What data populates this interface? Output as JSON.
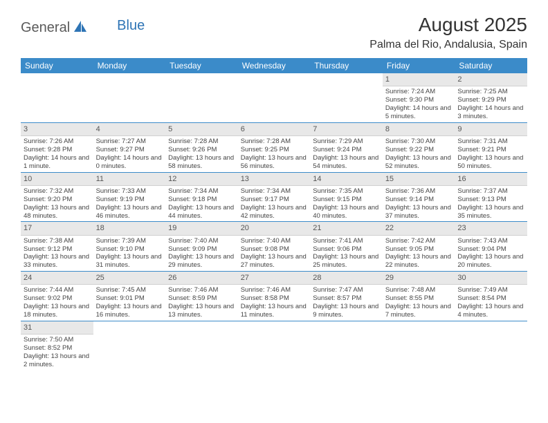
{
  "logo": {
    "text1": "General",
    "text2": "Blue"
  },
  "title": "August 2025",
  "location": "Palma del Rio, Andalusia, Spain",
  "colors": {
    "header_bg": "#3b8bc9",
    "header_text": "#ffffff",
    "daynum_bg": "#e8e8e8",
    "row_border": "#3b8bc9",
    "logo_gray": "#5a5a5a",
    "logo_blue": "#2e74b5"
  },
  "weekdays": [
    "Sunday",
    "Monday",
    "Tuesday",
    "Wednesday",
    "Thursday",
    "Friday",
    "Saturday"
  ],
  "weeks": [
    [
      null,
      null,
      null,
      null,
      null,
      {
        "n": "1",
        "sr": "Sunrise: 7:24 AM",
        "ss": "Sunset: 9:30 PM",
        "dl": "Daylight: 14 hours and 5 minutes."
      },
      {
        "n": "2",
        "sr": "Sunrise: 7:25 AM",
        "ss": "Sunset: 9:29 PM",
        "dl": "Daylight: 14 hours and 3 minutes."
      }
    ],
    [
      {
        "n": "3",
        "sr": "Sunrise: 7:26 AM",
        "ss": "Sunset: 9:28 PM",
        "dl": "Daylight: 14 hours and 1 minute."
      },
      {
        "n": "4",
        "sr": "Sunrise: 7:27 AM",
        "ss": "Sunset: 9:27 PM",
        "dl": "Daylight: 14 hours and 0 minutes."
      },
      {
        "n": "5",
        "sr": "Sunrise: 7:28 AM",
        "ss": "Sunset: 9:26 PM",
        "dl": "Daylight: 13 hours and 58 minutes."
      },
      {
        "n": "6",
        "sr": "Sunrise: 7:28 AM",
        "ss": "Sunset: 9:25 PM",
        "dl": "Daylight: 13 hours and 56 minutes."
      },
      {
        "n": "7",
        "sr": "Sunrise: 7:29 AM",
        "ss": "Sunset: 9:24 PM",
        "dl": "Daylight: 13 hours and 54 minutes."
      },
      {
        "n": "8",
        "sr": "Sunrise: 7:30 AM",
        "ss": "Sunset: 9:22 PM",
        "dl": "Daylight: 13 hours and 52 minutes."
      },
      {
        "n": "9",
        "sr": "Sunrise: 7:31 AM",
        "ss": "Sunset: 9:21 PM",
        "dl": "Daylight: 13 hours and 50 minutes."
      }
    ],
    [
      {
        "n": "10",
        "sr": "Sunrise: 7:32 AM",
        "ss": "Sunset: 9:20 PM",
        "dl": "Daylight: 13 hours and 48 minutes."
      },
      {
        "n": "11",
        "sr": "Sunrise: 7:33 AM",
        "ss": "Sunset: 9:19 PM",
        "dl": "Daylight: 13 hours and 46 minutes."
      },
      {
        "n": "12",
        "sr": "Sunrise: 7:34 AM",
        "ss": "Sunset: 9:18 PM",
        "dl": "Daylight: 13 hours and 44 minutes."
      },
      {
        "n": "13",
        "sr": "Sunrise: 7:34 AM",
        "ss": "Sunset: 9:17 PM",
        "dl": "Daylight: 13 hours and 42 minutes."
      },
      {
        "n": "14",
        "sr": "Sunrise: 7:35 AM",
        "ss": "Sunset: 9:15 PM",
        "dl": "Daylight: 13 hours and 40 minutes."
      },
      {
        "n": "15",
        "sr": "Sunrise: 7:36 AM",
        "ss": "Sunset: 9:14 PM",
        "dl": "Daylight: 13 hours and 37 minutes."
      },
      {
        "n": "16",
        "sr": "Sunrise: 7:37 AM",
        "ss": "Sunset: 9:13 PM",
        "dl": "Daylight: 13 hours and 35 minutes."
      }
    ],
    [
      {
        "n": "17",
        "sr": "Sunrise: 7:38 AM",
        "ss": "Sunset: 9:12 PM",
        "dl": "Daylight: 13 hours and 33 minutes."
      },
      {
        "n": "18",
        "sr": "Sunrise: 7:39 AM",
        "ss": "Sunset: 9:10 PM",
        "dl": "Daylight: 13 hours and 31 minutes."
      },
      {
        "n": "19",
        "sr": "Sunrise: 7:40 AM",
        "ss": "Sunset: 9:09 PM",
        "dl": "Daylight: 13 hours and 29 minutes."
      },
      {
        "n": "20",
        "sr": "Sunrise: 7:40 AM",
        "ss": "Sunset: 9:08 PM",
        "dl": "Daylight: 13 hours and 27 minutes."
      },
      {
        "n": "21",
        "sr": "Sunrise: 7:41 AM",
        "ss": "Sunset: 9:06 PM",
        "dl": "Daylight: 13 hours and 25 minutes."
      },
      {
        "n": "22",
        "sr": "Sunrise: 7:42 AM",
        "ss": "Sunset: 9:05 PM",
        "dl": "Daylight: 13 hours and 22 minutes."
      },
      {
        "n": "23",
        "sr": "Sunrise: 7:43 AM",
        "ss": "Sunset: 9:04 PM",
        "dl": "Daylight: 13 hours and 20 minutes."
      }
    ],
    [
      {
        "n": "24",
        "sr": "Sunrise: 7:44 AM",
        "ss": "Sunset: 9:02 PM",
        "dl": "Daylight: 13 hours and 18 minutes."
      },
      {
        "n": "25",
        "sr": "Sunrise: 7:45 AM",
        "ss": "Sunset: 9:01 PM",
        "dl": "Daylight: 13 hours and 16 minutes."
      },
      {
        "n": "26",
        "sr": "Sunrise: 7:46 AM",
        "ss": "Sunset: 8:59 PM",
        "dl": "Daylight: 13 hours and 13 minutes."
      },
      {
        "n": "27",
        "sr": "Sunrise: 7:46 AM",
        "ss": "Sunset: 8:58 PM",
        "dl": "Daylight: 13 hours and 11 minutes."
      },
      {
        "n": "28",
        "sr": "Sunrise: 7:47 AM",
        "ss": "Sunset: 8:57 PM",
        "dl": "Daylight: 13 hours and 9 minutes."
      },
      {
        "n": "29",
        "sr": "Sunrise: 7:48 AM",
        "ss": "Sunset: 8:55 PM",
        "dl": "Daylight: 13 hours and 7 minutes."
      },
      {
        "n": "30",
        "sr": "Sunrise: 7:49 AM",
        "ss": "Sunset: 8:54 PM",
        "dl": "Daylight: 13 hours and 4 minutes."
      }
    ],
    [
      {
        "n": "31",
        "sr": "Sunrise: 7:50 AM",
        "ss": "Sunset: 8:52 PM",
        "dl": "Daylight: 13 hours and 2 minutes."
      },
      null,
      null,
      null,
      null,
      null,
      null
    ]
  ]
}
